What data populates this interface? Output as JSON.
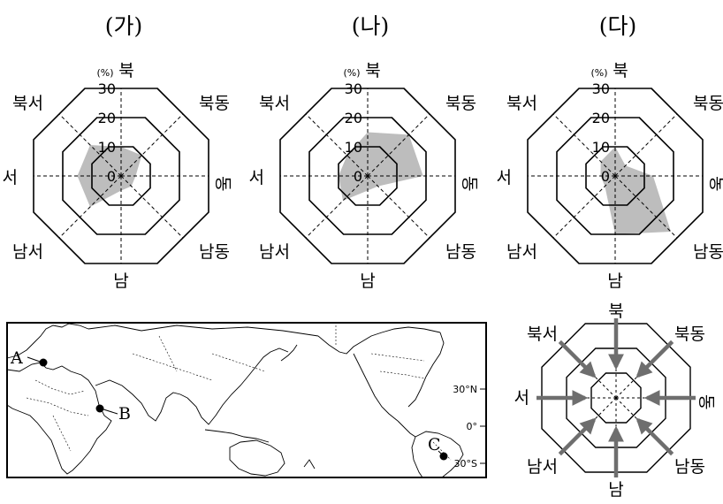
{
  "directions": [
    "북",
    "북동",
    "동",
    "남동",
    "남",
    "남서",
    "서",
    "북서"
  ],
  "radar": {
    "unit": "(%)",
    "ticks": [
      "0",
      "10",
      "20",
      "30"
    ],
    "max": 30
  },
  "chart_data": [
    {
      "type": "radar",
      "title": "(가)",
      "categories": [
        "북",
        "북동",
        "동",
        "남동",
        "남",
        "남서",
        "서",
        "북서"
      ],
      "values": [
        10,
        10,
        5,
        5,
        5,
        15,
        15,
        15
      ]
    },
    {
      "type": "radar",
      "title": "(나)",
      "categories": [
        "북",
        "북동",
        "동",
        "남동",
        "남",
        "남서",
        "서",
        "북서"
      ],
      "values": [
        15,
        20,
        19,
        5,
        5,
        12,
        10,
        10
      ]
    },
    {
      "type": "radar",
      "title": "(다)",
      "categories": [
        "북",
        "북동",
        "동",
        "남동",
        "남",
        "남서",
        "서",
        "북서"
      ],
      "values": [
        10,
        5,
        13,
        27,
        20,
        5,
        5,
        7
      ]
    }
  ],
  "map": {
    "points": [
      "A",
      "B",
      "C"
    ],
    "lat_labels": [
      "30°N",
      "0°",
      "30°S"
    ]
  },
  "legend_rose": {
    "directions": [
      "북",
      "북동",
      "동",
      "남동",
      "남",
      "남서",
      "서",
      "북서"
    ]
  }
}
